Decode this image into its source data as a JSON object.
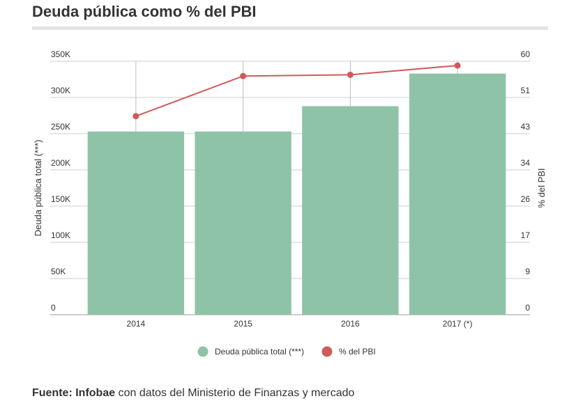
{
  "title": "Deuda pública como % del PBI",
  "source": {
    "label": "Fuente:",
    "outlet": "Infobae",
    "text": "con datos del Ministerio de Finanzas y mercado"
  },
  "chart_data": {
    "type": "bar",
    "categories": [
      "2014",
      "2015",
      "2016",
      "2017 (*)"
    ],
    "ylabel": "Deuda pública total (***)",
    "y2label": "% del PBI",
    "ylim": [
      0,
      350000
    ],
    "y2lim": [
      0,
      60
    ],
    "y_ticks": [
      "0",
      "50K",
      "100K",
      "150K",
      "200K",
      "250K",
      "300K",
      "350K"
    ],
    "y2_ticks": [
      "0",
      "9",
      "17",
      "26",
      "34",
      "43",
      "51",
      "60"
    ],
    "series": [
      {
        "name": "Deuda pública total (***)",
        "type": "bar",
        "axis": "left",
        "values": [
          253000,
          253000,
          288000,
          333000
        ],
        "color": "#8fc3a7"
      },
      {
        "name": "% del PBI",
        "type": "line",
        "axis": "right",
        "values": [
          47,
          56.5,
          56.8,
          59
        ],
        "color": "#d05a5a"
      }
    ],
    "grid": true,
    "legend": "bottom-center"
  }
}
